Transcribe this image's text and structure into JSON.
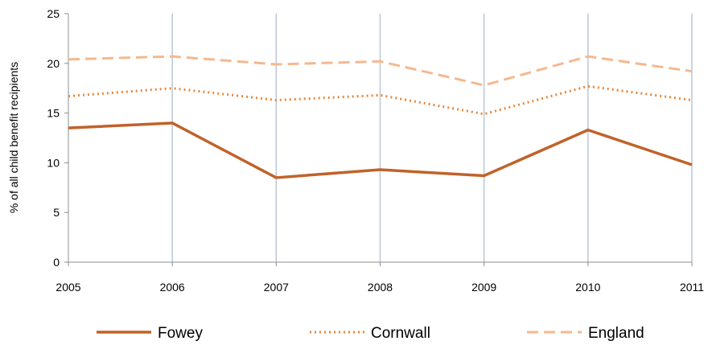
{
  "chart_data": {
    "type": "line",
    "x": [
      2005,
      2006,
      2007,
      2008,
      2009,
      2010,
      2011
    ],
    "ylabel": "% of all child benefit recipients",
    "ylim": [
      0,
      25
    ],
    "yticks": [
      0,
      5,
      10,
      15,
      20,
      25
    ],
    "grid": "vertical",
    "legend_position": "bottom",
    "series": [
      {
        "name": "Fowey",
        "values": [
          13.5,
          14.0,
          8.5,
          9.3,
          8.7,
          13.3,
          9.8
        ],
        "color": "#c0622a",
        "style": "solid"
      },
      {
        "name": "Cornwall",
        "values": [
          16.7,
          17.5,
          16.3,
          16.8,
          14.9,
          17.7,
          16.3
        ],
        "color": "#e6873b",
        "style": "dotted"
      },
      {
        "name": "England",
        "values": [
          20.4,
          20.7,
          19.9,
          20.2,
          17.8,
          20.7,
          19.2
        ],
        "color": "#f5b88f",
        "style": "dashed"
      }
    ]
  }
}
